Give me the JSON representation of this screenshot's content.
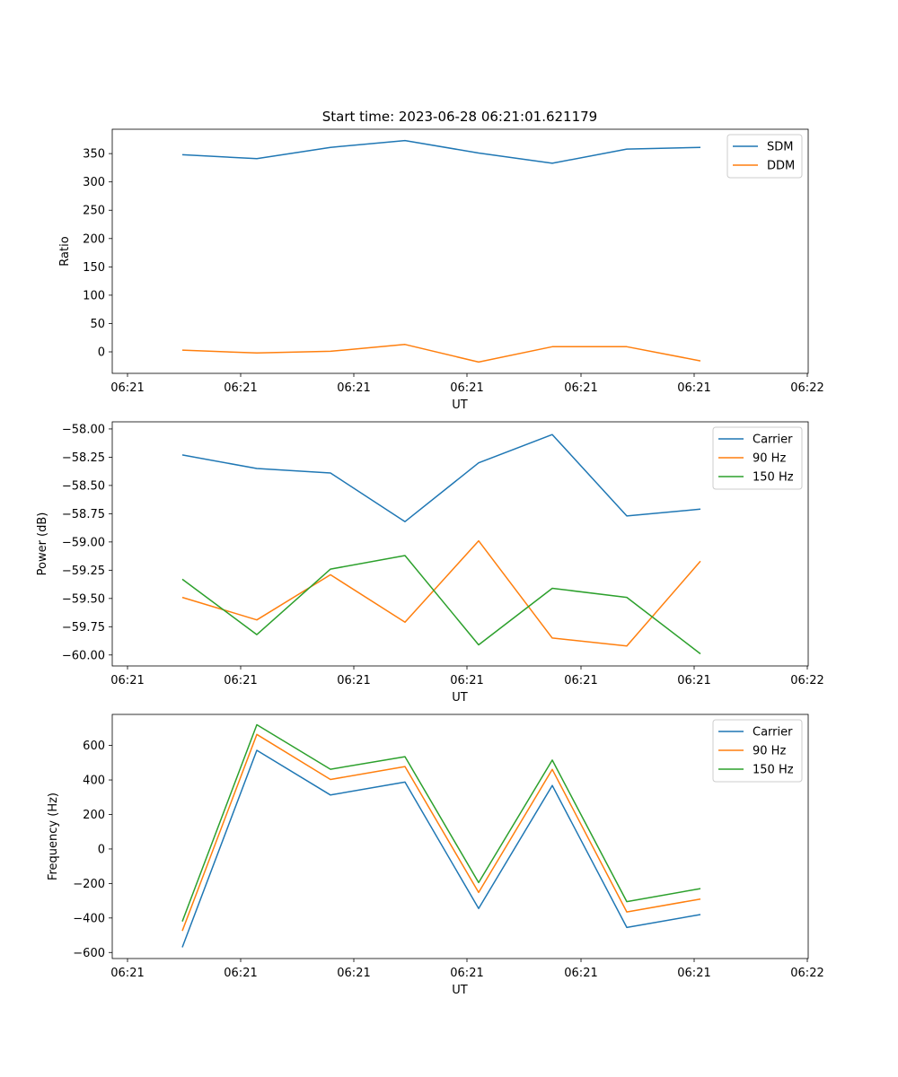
{
  "figure": {
    "title": "Start time: 2023-06-28 06:21:01.621179"
  },
  "colors": {
    "blue": "#1f77b4",
    "orange": "#ff7f0e",
    "green": "#2ca02c"
  },
  "chart_data": [
    {
      "type": "line",
      "title": "Start time: 2023-06-28 06:21:01.621179",
      "xlabel": "UT",
      "ylabel": "Ratio",
      "x_ticks": [
        "06:21",
        "06:21",
        "06:21",
        "06:21",
        "06:21",
        "06:21",
        "06:22"
      ],
      "y_ticks": [
        "0",
        "50",
        "100",
        "150",
        "200",
        "250",
        "300",
        "350"
      ],
      "ylim": [
        -38,
        393
      ],
      "legend": "top-right",
      "grid": false,
      "series": [
        {
          "name": "SDM",
          "color": "#1f77b4",
          "values": [
            348,
            341,
            361,
            373,
            351,
            333,
            358,
            361
          ]
        },
        {
          "name": "DDM",
          "color": "#ff7f0e",
          "values": [
            3,
            -2,
            1,
            13,
            -18,
            9,
            9,
            -16
          ]
        }
      ]
    },
    {
      "type": "line",
      "title": "",
      "xlabel": "UT",
      "ylabel": "Power (dB)",
      "x_ticks": [
        "06:21",
        "06:21",
        "06:21",
        "06:21",
        "06:21",
        "06:21",
        "06:22"
      ],
      "y_ticks": [
        "−58.00",
        "−58.25",
        "−58.50",
        "−58.75",
        "−59.00",
        "−59.25",
        "−59.50",
        "−59.75",
        "−60.00"
      ],
      "ylim": [
        -60.097,
        -57.937
      ],
      "legend": "top-right",
      "grid": false,
      "series": [
        {
          "name": "Carrier",
          "color": "#1f77b4",
          "values": [
            -58.23,
            -58.35,
            -58.39,
            -58.82,
            -58.3,
            -58.05,
            -58.77,
            -58.71
          ]
        },
        {
          "name": "90 Hz",
          "color": "#ff7f0e",
          "values": [
            -59.49,
            -59.69,
            -59.29,
            -59.71,
            -58.99,
            -59.85,
            -59.92,
            -59.17
          ]
        },
        {
          "name": "150 Hz",
          "color": "#2ca02c",
          "values": [
            -59.33,
            -59.82,
            -59.24,
            -59.12,
            -59.91,
            -59.41,
            -59.49,
            -59.99
          ]
        }
      ]
    },
    {
      "type": "line",
      "title": "",
      "xlabel": "UT",
      "ylabel": "Frequency (Hz)",
      "x_ticks": [
        "06:21",
        "06:21",
        "06:21",
        "06:21",
        "06:21",
        "06:21",
        "06:22"
      ],
      "y_ticks": [
        "−600",
        "−400",
        "−200",
        "0",
        "200",
        "400",
        "600"
      ],
      "ylim": [
        -635,
        780
      ],
      "legend": "top-right",
      "grid": false,
      "series": [
        {
          "name": "Carrier",
          "color": "#1f77b4",
          "values": [
            -570,
            572,
            313,
            388,
            -345,
            368,
            -455,
            -380
          ]
        },
        {
          "name": "90 Hz",
          "color": "#ff7f0e",
          "values": [
            -475,
            664,
            403,
            478,
            -252,
            461,
            -365,
            -290
          ]
        },
        {
          "name": "150 Hz",
          "color": "#2ca02c",
          "values": [
            -420,
            720,
            462,
            535,
            -195,
            515,
            -305,
            -230
          ]
        }
      ]
    }
  ]
}
